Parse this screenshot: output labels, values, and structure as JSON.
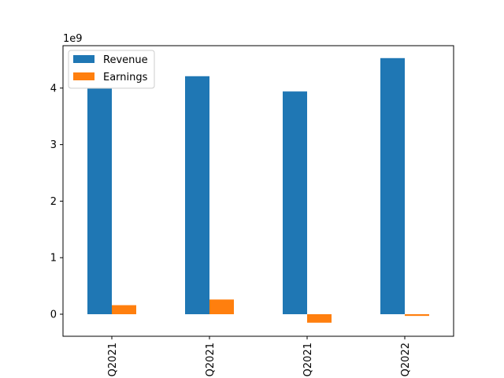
{
  "chart_data": {
    "type": "bar",
    "categories": [
      "Q2021",
      "Q2021",
      "Q2021",
      "Q2022"
    ],
    "series": [
      {
        "name": "Revenue",
        "color": "#1f77b4",
        "values": [
          3990000000.0,
          4210000000.0,
          3940000000.0,
          4530000000.0
        ]
      },
      {
        "name": "Earnings",
        "color": "#ff7f0e",
        "values": [
          160000000.0,
          260000000.0,
          -150000000.0,
          -30000000.0
        ]
      }
    ],
    "y_offset_label": "1e9",
    "y_ticks": [
      0,
      1,
      2,
      3,
      4
    ],
    "ylim": [
      -390000000.0,
      4750000000.0
    ],
    "grid": false,
    "legend_position": "top-left",
    "x_tick_rotation": 90
  }
}
